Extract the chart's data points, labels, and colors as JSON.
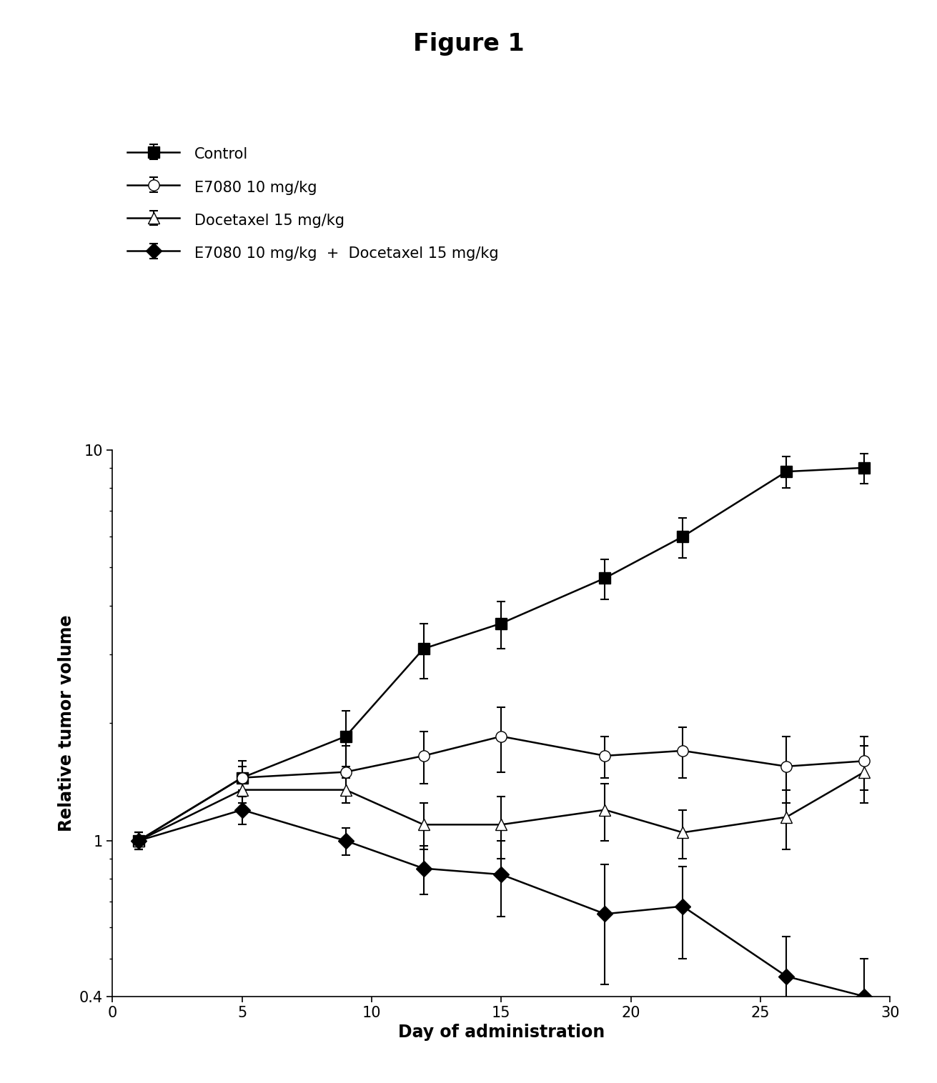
{
  "title": "Figure 1",
  "xlabel": "Day of administration",
  "ylabel": "Relative tumor volume",
  "xlim": [
    0,
    30
  ],
  "ylim_log": [
    0.4,
    10
  ],
  "x_ticks": [
    0,
    5,
    10,
    15,
    20,
    25,
    30
  ],
  "series": [
    {
      "label": "Control",
      "marker": "s",
      "marker_face": "black",
      "marker_edge": "black",
      "line_color": "black",
      "x": [
        1,
        5,
        9,
        12,
        15,
        19,
        22,
        26,
        29
      ],
      "y": [
        1.0,
        1.45,
        1.85,
        3.1,
        3.6,
        4.7,
        6.0,
        8.8,
        9.0
      ],
      "yerr": [
        0.05,
        0.15,
        0.3,
        0.5,
        0.5,
        0.55,
        0.7,
        0.8,
        0.8
      ]
    },
    {
      "label": "E7080 10 mg/kg",
      "marker": "o",
      "marker_face": "white",
      "marker_edge": "black",
      "line_color": "black",
      "x": [
        1,
        5,
        9,
        12,
        15,
        19,
        22,
        26,
        29
      ],
      "y": [
        1.0,
        1.45,
        1.5,
        1.65,
        1.85,
        1.65,
        1.7,
        1.55,
        1.6
      ],
      "yerr": [
        0.05,
        0.1,
        0.25,
        0.25,
        0.35,
        0.2,
        0.25,
        0.3,
        0.25
      ]
    },
    {
      "label": "Docetaxel 15 mg/kg",
      "marker": "^",
      "marker_face": "white",
      "marker_edge": "black",
      "line_color": "black",
      "x": [
        1,
        5,
        9,
        12,
        15,
        19,
        22,
        26,
        29
      ],
      "y": [
        1.0,
        1.35,
        1.35,
        1.1,
        1.1,
        1.2,
        1.05,
        1.15,
        1.5
      ],
      "yerr": [
        0.05,
        0.1,
        0.1,
        0.15,
        0.2,
        0.2,
        0.15,
        0.2,
        0.25
      ]
    },
    {
      "label": "E7080 10 mg/kg  +  Docetaxel 15 mg/kg",
      "marker": "D",
      "marker_face": "black",
      "marker_edge": "black",
      "line_color": "black",
      "x": [
        1,
        5,
        9,
        12,
        15,
        19,
        22,
        26,
        29
      ],
      "y": [
        1.0,
        1.2,
        1.0,
        0.85,
        0.82,
        0.65,
        0.68,
        0.45,
        0.4
      ],
      "yerr": [
        0.05,
        0.1,
        0.08,
        0.12,
        0.18,
        0.22,
        0.18,
        0.12,
        0.1
      ]
    }
  ],
  "title_fontsize": 24,
  "label_fontsize": 17,
  "tick_fontsize": 15,
  "legend_fontsize": 15,
  "marker_size": 11,
  "line_width": 1.8,
  "background_color": "#ffffff"
}
